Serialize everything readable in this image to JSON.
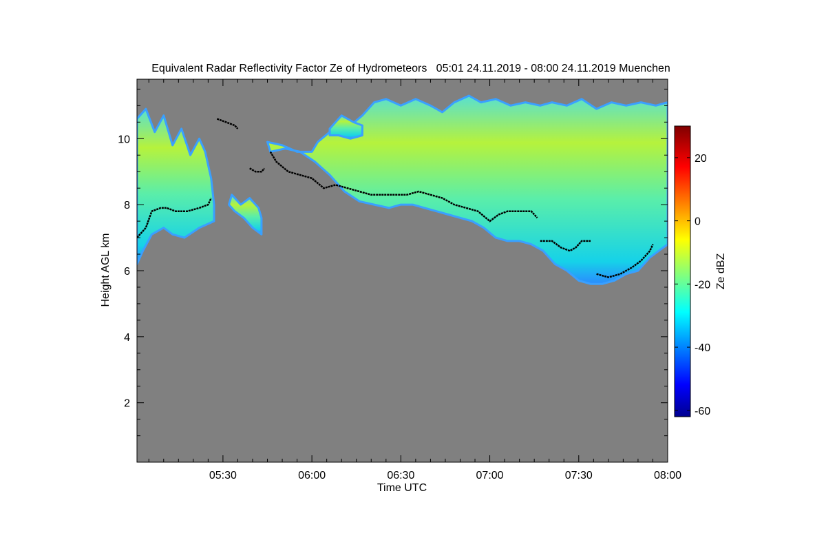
{
  "chart_data": {
    "type": "heatmap",
    "title": "Equivalent Radar Reflectivity Factor Ze of Hydrometeors   05:01 24.11.2019 - 08:00 24.11.2019 Muenchen",
    "xlabel": "Time UTC",
    "ylabel": "Height AGL km",
    "xlim_minutes": [
      301,
      480
    ],
    "ylim": [
      0.2,
      11.8
    ],
    "x_ticks": [
      {
        "label": "05:30",
        "value": 330
      },
      {
        "label": "06:00",
        "value": 360
      },
      {
        "label": "06:30",
        "value": 390
      },
      {
        "label": "07:00",
        "value": 420
      },
      {
        "label": "07:30",
        "value": 450
      },
      {
        "label": "08:00",
        "value": 480
      }
    ],
    "y_ticks": [
      {
        "label": "2",
        "value": 2
      },
      {
        "label": "4",
        "value": 4
      },
      {
        "label": "6",
        "value": 6
      },
      {
        "label": "8",
        "value": 8
      },
      {
        "label": "10",
        "value": 10
      }
    ],
    "colorbar": {
      "label": "Ze dBZ",
      "range": [
        -62,
        30
      ],
      "ticks": [
        {
          "label": "20",
          "value": 20
        },
        {
          "label": "0",
          "value": 0
        },
        {
          "label": "-20",
          "value": -20
        },
        {
          "label": "-40",
          "value": -40
        },
        {
          "label": "-60",
          "value": -60
        }
      ]
    },
    "colors": {
      "background": "#808080",
      "cloud_edge": "#3aa0ff",
      "cloud_mid": "#22e6d6",
      "cloud_core": "#b4f03c",
      "boundary_line": "#000000"
    },
    "cloud_segments": [
      {
        "name": "cloud-segment-1",
        "top": [
          [
            301,
            10.6
          ],
          [
            304,
            10.9
          ],
          [
            307,
            10.2
          ],
          [
            310,
            10.7
          ],
          [
            313,
            9.8
          ],
          [
            316,
            10.3
          ],
          [
            319,
            9.5
          ],
          [
            322,
            10.0
          ],
          [
            324,
            9.6
          ],
          [
            326,
            8.8
          ],
          [
            327,
            8.0
          ],
          [
            327,
            7.6
          ]
        ],
        "base": [
          [
            327,
            7.5
          ],
          [
            322,
            7.3
          ],
          [
            317,
            7.0
          ],
          [
            313,
            7.1
          ],
          [
            310,
            7.3
          ],
          [
            306,
            7.1
          ],
          [
            303,
            6.6
          ],
          [
            301,
            6.2
          ]
        ]
      },
      {
        "name": "cloud-segment-2",
        "top": [
          [
            333,
            8.3
          ],
          [
            336,
            8.0
          ],
          [
            339,
            8.2
          ],
          [
            342,
            7.9
          ],
          [
            343,
            7.6
          ]
        ],
        "base": [
          [
            343,
            7.1
          ],
          [
            340,
            7.3
          ],
          [
            337,
            7.6
          ],
          [
            334,
            7.8
          ],
          [
            332,
            8.0
          ]
        ]
      },
      {
        "name": "cloud-segment-3",
        "top": [
          [
            345,
            9.9
          ],
          [
            350,
            9.8
          ],
          [
            355,
            9.6
          ],
          [
            360,
            9.6
          ],
          [
            362,
            9.9
          ],
          [
            366,
            10.2
          ],
          [
            369,
            10.6
          ],
          [
            373,
            10.4
          ],
          [
            377,
            10.7
          ],
          [
            381,
            11.1
          ],
          [
            385,
            11.2
          ],
          [
            390,
            11.0
          ],
          [
            395,
            11.2
          ],
          [
            400,
            11.0
          ],
          [
            404,
            10.8
          ],
          [
            408,
            11.1
          ],
          [
            413,
            11.3
          ],
          [
            417,
            11.1
          ],
          [
            422,
            11.2
          ],
          [
            427,
            11.0
          ],
          [
            432,
            11.1
          ],
          [
            437,
            11.0
          ],
          [
            441,
            11.1
          ],
          [
            446,
            11.0
          ],
          [
            451,
            11.2
          ],
          [
            456,
            10.9
          ],
          [
            461,
            11.1
          ],
          [
            466,
            11.0
          ],
          [
            471,
            11.1
          ],
          [
            476,
            11.0
          ],
          [
            480,
            11.1
          ]
        ],
        "base": [
          [
            480,
            6.8
          ],
          [
            477,
            6.6
          ],
          [
            474,
            6.4
          ],
          [
            470,
            6.0
          ],
          [
            466,
            5.9
          ],
          [
            462,
            5.7
          ],
          [
            458,
            5.6
          ],
          [
            454,
            5.6
          ],
          [
            450,
            5.7
          ],
          [
            446,
            6.0
          ],
          [
            442,
            6.2
          ],
          [
            438,
            6.6
          ],
          [
            434,
            6.8
          ],
          [
            430,
            6.9
          ],
          [
            426,
            6.9
          ],
          [
            422,
            7.0
          ],
          [
            418,
            7.3
          ],
          [
            414,
            7.5
          ],
          [
            410,
            7.6
          ],
          [
            406,
            7.7
          ],
          [
            402,
            7.8
          ],
          [
            398,
            7.9
          ],
          [
            394,
            8.0
          ],
          [
            390,
            8.0
          ],
          [
            386,
            7.9
          ],
          [
            381,
            8.0
          ],
          [
            376,
            8.1
          ],
          [
            371,
            8.4
          ],
          [
            366,
            8.9
          ],
          [
            361,
            9.3
          ],
          [
            356,
            9.6
          ],
          [
            351,
            9.7
          ],
          [
            346,
            9.6
          ]
        ]
      },
      {
        "name": "cloud-segment-4",
        "top": [
          [
            366,
            10.3
          ],
          [
            370,
            10.7
          ],
          [
            374,
            10.5
          ],
          [
            377,
            10.4
          ]
        ],
        "base": [
          [
            377,
            10.1
          ],
          [
            373,
            10.0
          ],
          [
            369,
            10.1
          ],
          [
            366,
            10.1
          ]
        ]
      }
    ],
    "boundary_lines": [
      {
        "name": "boundary-line-1",
        "points": [
          [
            301,
            7.0
          ],
          [
            304,
            7.3
          ],
          [
            306,
            7.8
          ],
          [
            309,
            7.9
          ],
          [
            311,
            7.9
          ],
          [
            314,
            7.8
          ],
          [
            318,
            7.8
          ],
          [
            322,
            7.9
          ],
          [
            325,
            8.0
          ],
          [
            326,
            8.2
          ]
        ]
      },
      {
        "name": "boundary-line-2",
        "points": [
          [
            328,
            10.6
          ],
          [
            331,
            10.5
          ],
          [
            334,
            10.4
          ],
          [
            335,
            10.3
          ]
        ]
      },
      {
        "name": "boundary-line-3",
        "points": [
          [
            339,
            9.1
          ],
          [
            341,
            9.0
          ],
          [
            343,
            9.0
          ],
          [
            344,
            9.1
          ]
        ]
      },
      {
        "name": "boundary-line-4",
        "points": [
          [
            346,
            9.6
          ],
          [
            348,
            9.3
          ],
          [
            352,
            9.0
          ],
          [
            356,
            8.9
          ],
          [
            360,
            8.8
          ],
          [
            364,
            8.5
          ],
          [
            368,
            8.6
          ],
          [
            372,
            8.5
          ],
          [
            376,
            8.4
          ],
          [
            380,
            8.3
          ],
          [
            384,
            8.3
          ],
          [
            388,
            8.3
          ],
          [
            392,
            8.3
          ],
          [
            396,
            8.4
          ],
          [
            400,
            8.3
          ],
          [
            404,
            8.2
          ],
          [
            408,
            8.0
          ],
          [
            412,
            7.9
          ],
          [
            416,
            7.8
          ],
          [
            420,
            7.5
          ],
          [
            423,
            7.7
          ],
          [
            426,
            7.8
          ],
          [
            430,
            7.8
          ],
          [
            434,
            7.8
          ],
          [
            436,
            7.6
          ]
        ]
      },
      {
        "name": "boundary-line-5",
        "points": [
          [
            437,
            6.9
          ],
          [
            441,
            6.9
          ],
          [
            444,
            6.7
          ],
          [
            447,
            6.6
          ],
          [
            449,
            6.7
          ],
          [
            451,
            6.9
          ],
          [
            454,
            6.9
          ]
        ]
      },
      {
        "name": "boundary-line-6",
        "points": [
          [
            456,
            5.9
          ],
          [
            460,
            5.8
          ],
          [
            464,
            5.9
          ],
          [
            468,
            6.1
          ],
          [
            471,
            6.3
          ],
          [
            474,
            6.6
          ],
          [
            475,
            6.8
          ]
        ]
      }
    ]
  }
}
